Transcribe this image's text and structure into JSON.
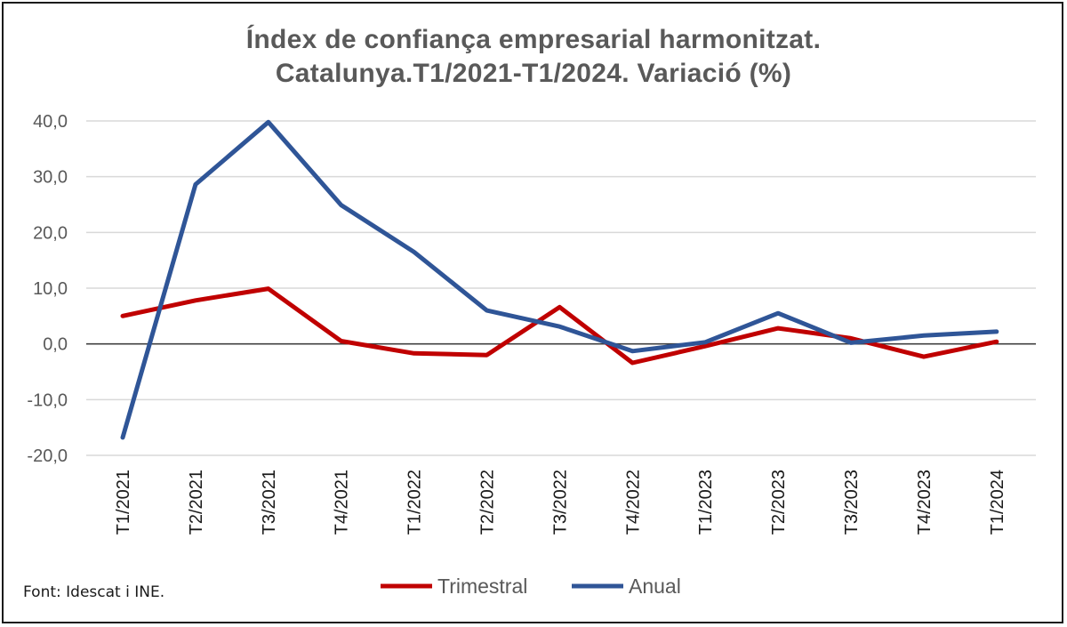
{
  "chart_data": {
    "type": "line",
    "title_line1": "Índex de confiança empresarial  harmonitzat.",
    "title_line2": "Catalunya.T1/2021-T1/2024. Variació  (%)",
    "categories": [
      "T1/2021",
      "T2/2021",
      "T3/2021",
      "T4/2021",
      "T1/2022",
      "T2/2022",
      "T3/2022",
      "T4/2022",
      "T1/2023",
      "T2/2023",
      "T3/2023",
      "T4/2023",
      "T1/2024"
    ],
    "series": [
      {
        "name": "Trimestral",
        "color": "#C00000",
        "values": [
          5.0,
          7.8,
          9.9,
          0.5,
          -1.7,
          -2.0,
          6.6,
          -3.4,
          -0.4,
          2.8,
          1.0,
          -2.3,
          0.4
        ]
      },
      {
        "name": "Anual",
        "color": "#2F5597",
        "values": [
          -16.8,
          28.6,
          39.8,
          24.9,
          16.5,
          6.0,
          3.1,
          -1.3,
          0.3,
          5.5,
          0.2,
          1.5,
          2.2
        ]
      }
    ],
    "y_ticks": [
      "40,0",
      "30,0",
      "20,0",
      "10,0",
      "0,0",
      "-10,0",
      "-20,0"
    ],
    "ylim": [
      -20,
      40
    ],
    "grid": true,
    "legend_position": "bottom"
  },
  "source": "Font: Idescat i INE."
}
